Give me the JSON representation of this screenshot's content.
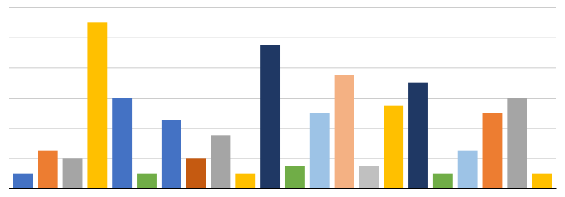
{
  "chart_data": {
    "type": "bar",
    "categories": [
      null,
      null,
      null,
      null,
      null,
      null,
      null,
      null,
      null,
      null,
      null,
      null,
      null,
      null,
      null,
      null,
      null,
      null,
      null,
      null,
      null,
      null
    ],
    "values": [
      2,
      5,
      4,
      22,
      12,
      2,
      9,
      4,
      7,
      2,
      19,
      3,
      10,
      15,
      3,
      11,
      14,
      2,
      5,
      10,
      12,
      2
    ],
    "colors": [
      "#4472c4",
      "#ed7d31",
      "#a5a5a5",
      "#ffc000",
      "#4472c4",
      "#70ad47",
      "#4472c4",
      "#c55a11",
      "#a5a5a5",
      "#ffc000",
      "#1f3864",
      "#70ad47",
      "#9dc3e6",
      "#f4b183",
      "#c0c0c0",
      "#ffc000",
      "#1f3864",
      "#70ad47",
      "#9dc3e6",
      "#ed7d31",
      "#a5a5a5",
      "#ffc000"
    ],
    "ylim": [
      0,
      24
    ],
    "yticks": [
      0,
      4,
      8,
      12,
      16,
      20,
      24
    ],
    "grid": true,
    "tick_labels": false
  }
}
